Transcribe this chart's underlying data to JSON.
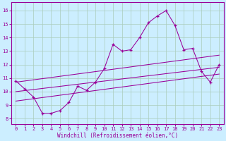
{
  "xlabel": "Windchill (Refroidissement éolien,°C)",
  "bg_color": "#cceeff",
  "line_color": "#990099",
  "grid_color": "#aaccbb",
  "x_ticks": [
    0,
    1,
    2,
    3,
    4,
    5,
    6,
    7,
    8,
    9,
    10,
    11,
    12,
    13,
    14,
    15,
    16,
    17,
    18,
    19,
    20,
    21,
    22,
    23
  ],
  "y_ticks": [
    8,
    9,
    10,
    11,
    12,
    13,
    14,
    15,
    16
  ],
  "xlim": [
    -0.5,
    23.5
  ],
  "ylim": [
    7.6,
    16.6
  ],
  "series1": {
    "x": [
      0,
      1,
      2,
      3,
      4,
      5,
      6,
      7,
      8,
      9,
      10,
      11,
      12,
      13,
      14,
      15,
      16,
      17,
      18,
      19,
      20,
      21,
      22,
      23
    ],
    "y": [
      10.8,
      10.2,
      9.6,
      8.4,
      8.4,
      8.6,
      9.2,
      10.4,
      10.1,
      10.7,
      11.7,
      13.5,
      13.0,
      13.1,
      14.0,
      15.1,
      15.6,
      16.0,
      14.9,
      13.1,
      13.2,
      11.5,
      10.7,
      12.0
    ]
  },
  "series2": {
    "x": [
      0,
      23
    ],
    "y": [
      9.3,
      11.3
    ]
  },
  "series3": {
    "x": [
      0,
      23
    ],
    "y": [
      10.0,
      11.8
    ]
  },
  "series4": {
    "x": [
      0,
      23
    ],
    "y": [
      10.7,
      12.7
    ]
  }
}
